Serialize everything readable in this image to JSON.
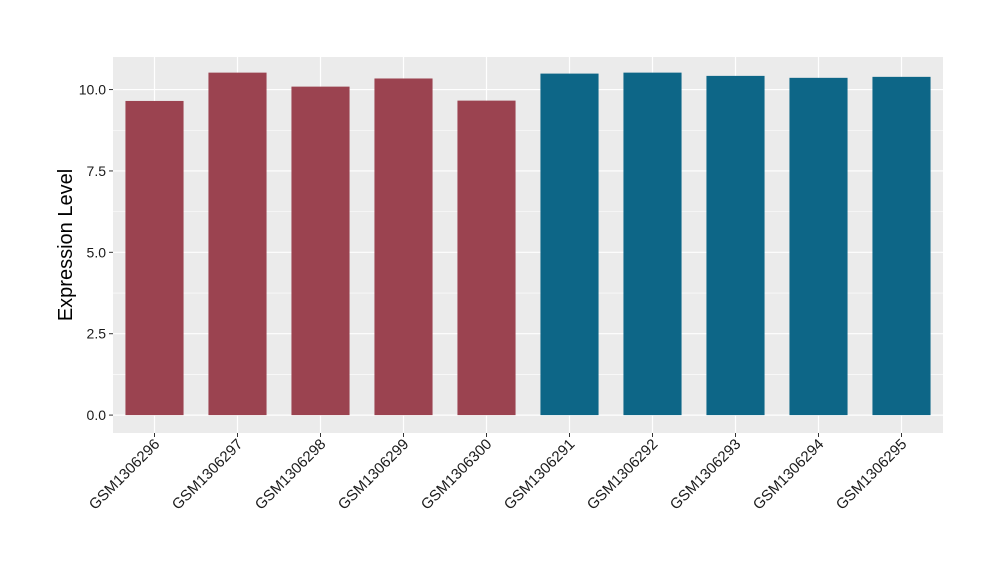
{
  "chart_data": {
    "type": "bar",
    "title": "",
    "xlabel": "",
    "ylabel": "Expression Level",
    "ylim": [
      -0.55,
      11.0
    ],
    "yticks": [
      "0.0",
      "2.5",
      "5.0",
      "7.5",
      "10.0"
    ],
    "ytick_values": [
      0,
      2.5,
      5,
      7.5,
      10
    ],
    "grid": true,
    "legend": "none",
    "panel_background": "#ebebeb",
    "grid_color": "#ffffff",
    "categories": [
      "GSM1306296",
      "GSM1306297",
      "GSM1306298",
      "GSM1306299",
      "GSM1306300",
      "GSM1306291",
      "GSM1306292",
      "GSM1306293",
      "GSM1306294",
      "GSM1306295"
    ],
    "values": [
      9.65,
      10.52,
      10.09,
      10.34,
      9.66,
      10.49,
      10.52,
      10.42,
      10.36,
      10.39
    ],
    "bar_colors": [
      "#9b4350",
      "#9b4350",
      "#9b4350",
      "#9b4350",
      "#9b4350",
      "#0d6687",
      "#0d6687",
      "#0d6687",
      "#0d6687",
      "#0d6687"
    ]
  }
}
